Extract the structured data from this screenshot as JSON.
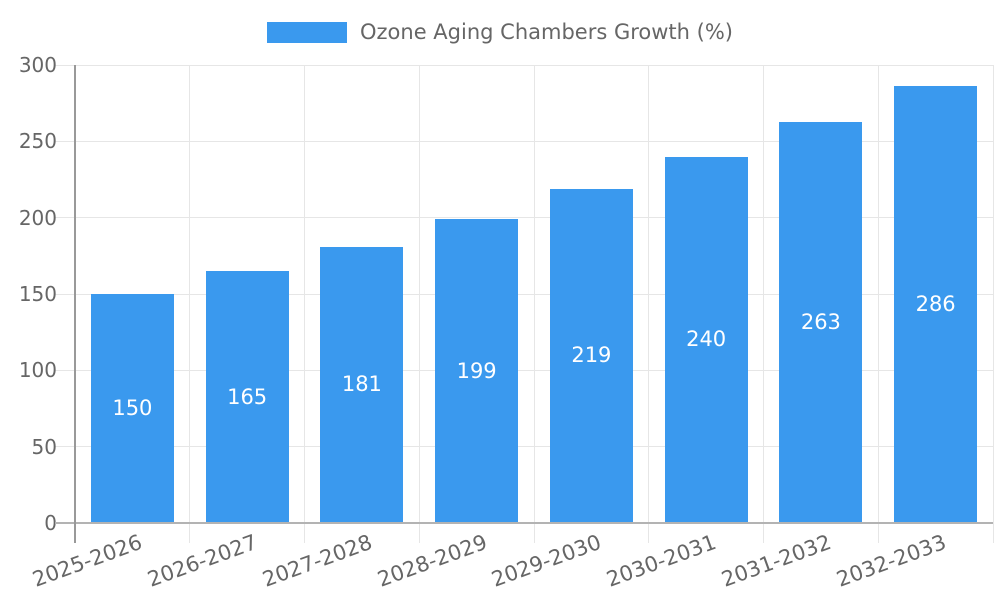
{
  "legend": {
    "label": "Ozone Aging Chambers Growth (%)"
  },
  "chart_data": {
    "type": "bar",
    "title": "Ozone Aging Chambers Growth (%)",
    "categories": [
      "2025-2026",
      "2026-2027",
      "2027-2028",
      "2028-2029",
      "2029-2030",
      "2030-2031",
      "2031-2032",
      "2032-2033"
    ],
    "values": [
      150,
      165,
      181,
      199,
      219,
      240,
      263,
      286
    ],
    "series": [
      {
        "name": "Ozone Aging Chambers Growth (%)",
        "values": [
          150,
          165,
          181,
          199,
          219,
          240,
          263,
          286
        ]
      }
    ],
    "xlabel": "",
    "ylabel": "",
    "ylim": [
      0,
      300
    ],
    "yticks": [
      0,
      50,
      100,
      150,
      200,
      250,
      300
    ],
    "grid": true,
    "legend_position": "top-center",
    "x_tick_rotation_deg": -20,
    "bar_value_labels": "inside-center",
    "colors": {
      "bar": "#3a99ee",
      "bar_label": "#ffffff",
      "grid": "#e6e6e6",
      "y_axis": "#999999",
      "x_axis": "#b3b3b3",
      "tick_text": "#666666",
      "legend_text": "#666666",
      "background": "#ffffff"
    }
  }
}
